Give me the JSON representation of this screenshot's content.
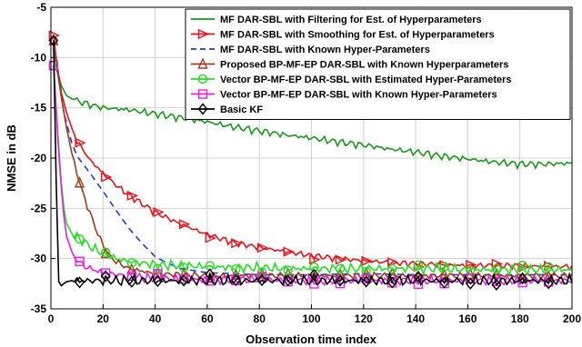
{
  "chart_data": {
    "type": "line",
    "title": "",
    "xlabel": "Observation time index",
    "ylabel": "NMSE in dB",
    "xlim": [
      0,
      200
    ],
    "ylim": [
      -35,
      -5
    ],
    "xticks": [
      0,
      20,
      40,
      60,
      80,
      100,
      120,
      140,
      160,
      180,
      200
    ],
    "yticks": [
      -35,
      -30,
      -25,
      -20,
      -15,
      -10,
      -5
    ],
    "grid": true,
    "legend_position": "top-right",
    "series": [
      {
        "name": "MF DAR-SBL with Filtering for Est. of Hyperparameters",
        "color": "#1a9a1a",
        "dash": "solid",
        "marker": "none",
        "x": [
          1,
          2,
          4,
          6,
          8,
          10,
          15,
          20,
          30,
          40,
          50,
          60,
          70,
          80,
          90,
          100,
          110,
          120,
          130,
          140,
          150,
          160,
          170,
          180,
          190,
          200
        ],
        "y": [
          -8.5,
          -11,
          -12.8,
          -13.8,
          -14.1,
          -14.3,
          -14.7,
          -15.0,
          -15.2,
          -15.6,
          -16.0,
          -16.4,
          -16.9,
          -17.3,
          -17.7,
          -18.0,
          -18.4,
          -18.7,
          -19.1,
          -19.4,
          -19.8,
          -20.1,
          -20.4,
          -20.6,
          -20.6,
          -20.5
        ]
      },
      {
        "name": "MF DAR-SBL with Smoothing for Est. of Hyperparameters",
        "color": "#e8141c",
        "dash": "solid",
        "marker": "triangle-right",
        "x": [
          1,
          2,
          4,
          6,
          8,
          10,
          15,
          20,
          25,
          30,
          40,
          50,
          60,
          70,
          80,
          90,
          100,
          110,
          120,
          130,
          140,
          150,
          160,
          170,
          180,
          190,
          200
        ],
        "y": [
          -7.8,
          -10,
          -13.5,
          -15.5,
          -17.0,
          -18.3,
          -20.2,
          -21.5,
          -22.7,
          -23.7,
          -25.4,
          -26.6,
          -27.6,
          -28.4,
          -28.9,
          -29.3,
          -29.7,
          -30.0,
          -30.2,
          -30.4,
          -30.5,
          -30.6,
          -30.7,
          -30.7,
          -30.7,
          -30.8,
          -30.8
        ]
      },
      {
        "name": "MF DAR-SBL with Known Hyper-Parameters",
        "color": "#1a3fd8",
        "dash": "dashed",
        "marker": "none",
        "x": [
          1,
          3,
          5,
          8,
          10,
          15,
          20,
          25,
          30,
          35,
          40,
          45,
          50,
          60,
          80,
          100,
          120,
          140,
          160,
          180,
          200
        ],
        "y": [
          -8.3,
          -12,
          -15.5,
          -18.5,
          -19.8,
          -21.5,
          -23.3,
          -25.2,
          -27.0,
          -28.5,
          -29.8,
          -30.5,
          -31.0,
          -31.4,
          -31.6,
          -31.6,
          -31.5,
          -31.6,
          -31.6,
          -31.6,
          -31.6
        ]
      },
      {
        "name": "Proposed BP-MF-EP DAR-SBL with Known Hyperparameters",
        "color": "#a23b1e",
        "dash": "solid",
        "marker": "triangle-up",
        "x": [
          1,
          2,
          4,
          6,
          8,
          10,
          12,
          15,
          18,
          20,
          22,
          25,
          30,
          40,
          60,
          80,
          100,
          120,
          140,
          160,
          180,
          200
        ],
        "y": [
          -8.3,
          -10.5,
          -14,
          -17.0,
          -19.5,
          -21.5,
          -23.3,
          -25.5,
          -27.5,
          -28.7,
          -29.6,
          -30.3,
          -31.0,
          -31.5,
          -31.7,
          -31.7,
          -31.7,
          -31.7,
          -31.7,
          -31.7,
          -31.7,
          -31.7
        ]
      },
      {
        "name": "Vector BP-MF-EP DAR-SBL with Estimated Hyper-Parameters",
        "color": "#22e022",
        "dash": "solid",
        "marker": "circle",
        "x": [
          1,
          2,
          3,
          4,
          5,
          6,
          8,
          10,
          12,
          15,
          20,
          25,
          30,
          40,
          50,
          60,
          70,
          80,
          90,
          100,
          110,
          120,
          130,
          140,
          150,
          160,
          170,
          180,
          190,
          200
        ],
        "y": [
          -10.8,
          -15,
          -19,
          -22.5,
          -25.0,
          -26.5,
          -27.5,
          -27.9,
          -28.2,
          -28.8,
          -29.5,
          -30.0,
          -30.3,
          -30.6,
          -30.7,
          -30.8,
          -30.9,
          -30.9,
          -31.0,
          -31.0,
          -31.0,
          -31.0,
          -31.0,
          -31.0,
          -31.0,
          -31.1,
          -31.1,
          -31.1,
          -31.1,
          -31.1
        ]
      },
      {
        "name": "Vector BP-MF-EP DAR-SBL with Known Hyper-Parameters",
        "color": "#e81ee8",
        "dash": "solid",
        "marker": "square",
        "x": [
          1,
          2,
          3,
          4,
          5,
          6,
          8,
          10,
          12,
          15,
          20,
          25,
          30,
          40,
          60,
          80,
          100,
          120,
          140,
          160,
          180,
          200
        ],
        "y": [
          -10.8,
          -15,
          -19.5,
          -23,
          -25.8,
          -27.8,
          -29.3,
          -30.1,
          -30.6,
          -31.0,
          -31.4,
          -31.6,
          -31.8,
          -32.0,
          -32.1,
          -32.1,
          -32.2,
          -32.2,
          -32.2,
          -32.2,
          -32.2,
          -32.2
        ]
      },
      {
        "name": "Basic KF",
        "color": "#000000",
        "dash": "solid",
        "marker": "diamond",
        "x": [
          1,
          2,
          3,
          4,
          5,
          6,
          8,
          10,
          15,
          20,
          30,
          40,
          60,
          80,
          100,
          120,
          140,
          160,
          180,
          200
        ],
        "y": [
          -8.3,
          -22,
          -32.3,
          -32.7,
          -32.5,
          -32.3,
          -32.2,
          -32.2,
          -32.2,
          -32.2,
          -32.2,
          -32.2,
          -32.2,
          -32.2,
          -32.2,
          -32.2,
          -32.2,
          -32.2,
          -32.2,
          -32.2
        ]
      }
    ]
  }
}
